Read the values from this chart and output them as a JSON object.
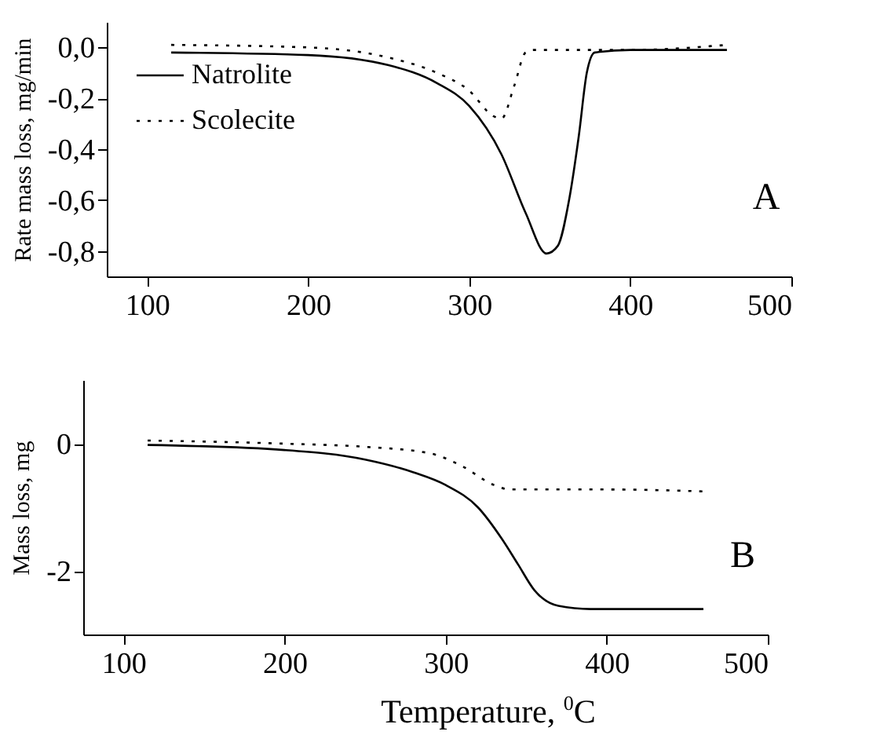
{
  "chart_data": [
    {
      "type": "line",
      "ylabel": "Rate mass loss, mg/min",
      "annotations": [
        "A"
      ],
      "xlim": [
        75,
        500
      ],
      "xticks": [
        100,
        200,
        300,
        400,
        500
      ],
      "ylim": [
        -0.9,
        0.1
      ],
      "yticks": [
        {
          "value": -0.8,
          "label": "-0,8"
        },
        {
          "value": -0.6,
          "label": "-0,6"
        },
        {
          "value": -0.4,
          "label": "-0,4"
        },
        {
          "value": -0.2,
          "label": "-0,2"
        },
        {
          "value": 0,
          "label": "0,0"
        }
      ],
      "grid": false,
      "legend": "top left",
      "series": [
        {
          "name": "Natrolite",
          "color": "#000000",
          "line_style": "solid",
          "x": [
            115,
            200,
            250,
            280,
            300,
            320,
            335,
            348,
            355,
            362,
            368,
            373,
            378,
            400,
            460
          ],
          "values": [
            -0.02,
            -0.03,
            -0.07,
            -0.14,
            -0.23,
            -0.42,
            -0.65,
            -0.81,
            -0.78,
            -0.6,
            -0.35,
            -0.1,
            -0.02,
            -0.01,
            -0.01
          ]
        },
        {
          "name": "Scolecite",
          "color": "#000000",
          "line_style": "dotted",
          "x": [
            115,
            200,
            250,
            280,
            300,
            315,
            320,
            328,
            335,
            340,
            400,
            460
          ],
          "values": [
            0.01,
            0.0,
            -0.04,
            -0.1,
            -0.17,
            -0.27,
            -0.28,
            -0.15,
            -0.02,
            -0.01,
            -0.01,
            0.01
          ]
        }
      ]
    },
    {
      "type": "line",
      "ylabel": "Mass loss, mg",
      "xlabel": "Temperature, $^{0}$C",
      "annotations": [
        "B"
      ],
      "xlim": [
        75,
        500
      ],
      "xticks": [
        100,
        200,
        300,
        400,
        500
      ],
      "ylim": [
        -3,
        1
      ],
      "yticks": [
        {
          "value": -2,
          "label": "-2"
        },
        0
      ],
      "grid": false,
      "series": [
        {
          "color": "#000000",
          "line_style": "solid",
          "x": [
            115,
            200,
            250,
            280,
            300,
            320,
            335,
            345,
            355,
            370,
            390,
            460
          ],
          "values": [
            -0.02,
            -0.1,
            -0.25,
            -0.45,
            -0.65,
            -1.0,
            -1.5,
            -1.9,
            -2.3,
            -2.55,
            -2.6,
            -2.6
          ]
        },
        {
          "color": "#000000",
          "line_style": "dotted",
          "x": [
            115,
            200,
            250,
            290,
            310,
            330,
            340,
            400,
            460
          ],
          "values": [
            0.05,
            0.0,
            -0.05,
            -0.15,
            -0.35,
            -0.65,
            -0.72,
            -0.72,
            -0.75
          ]
        }
      ]
    }
  ]
}
